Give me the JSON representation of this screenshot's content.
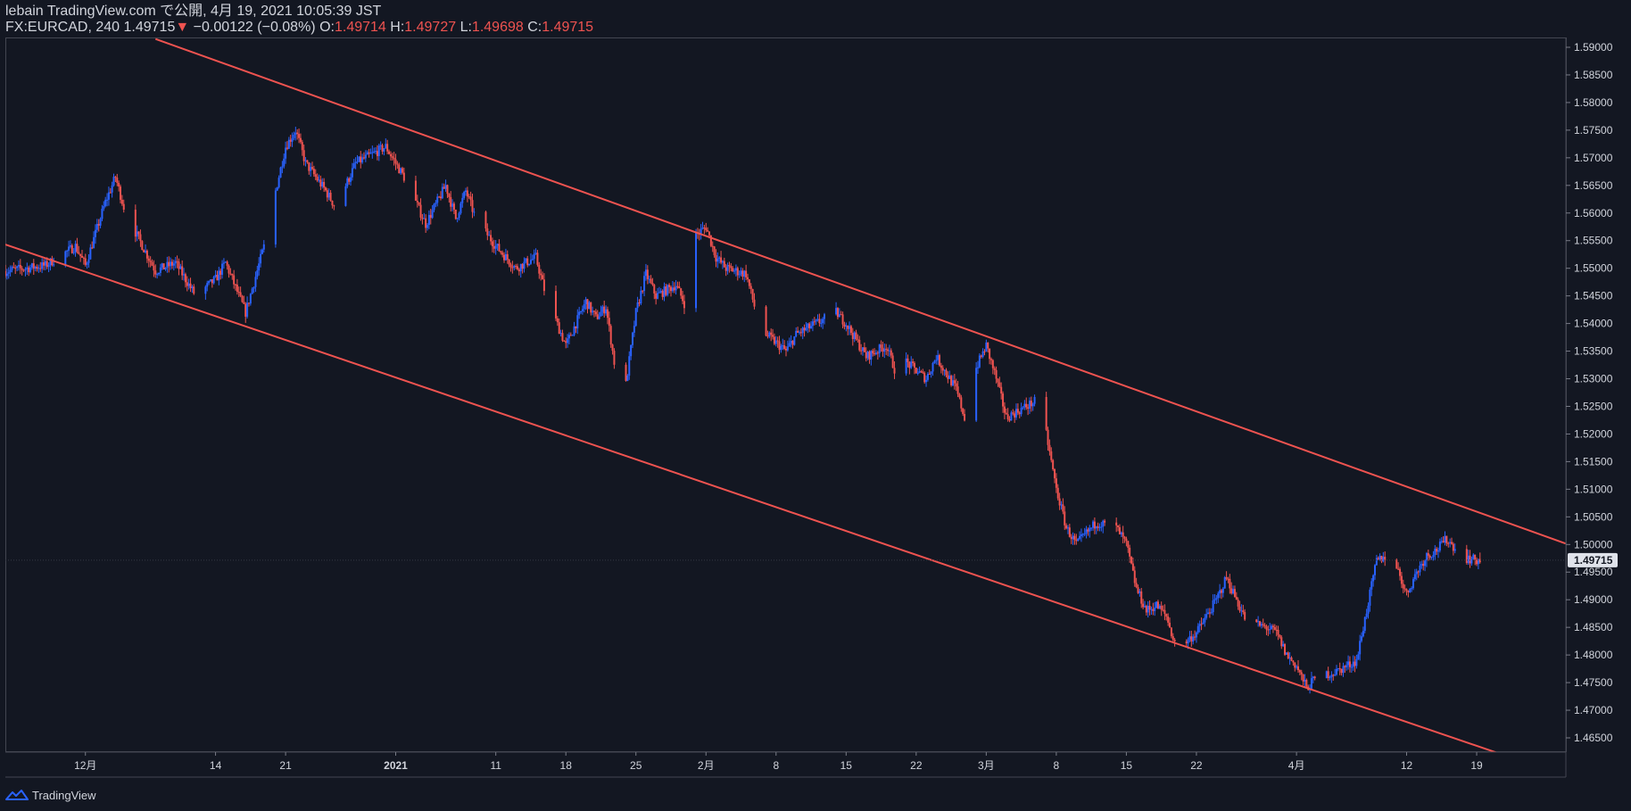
{
  "header": {
    "line1": "lebain TradingView.com で公開, 4月 19, 2021 10:05:39 JST",
    "symbol": "FX:EURCAD, 240",
    "last": "1.49715",
    "change_arrow": "▼",
    "change": "−0.00122 (−0.08%)",
    "o_label": "O:",
    "o_value": "1.49714",
    "h_label": "H:",
    "h_value": "1.49727",
    "l_label": "L:",
    "l_value": "1.49698",
    "c_label": "C:",
    "c_value": "1.49715"
  },
  "footer": {
    "brand": "TradingView",
    "icon": "tradingview-logo-icon"
  },
  "colors": {
    "background": "#131722",
    "up": "#2962ff",
    "down": "#ef5350",
    "trendline": "#ef5350",
    "axis_text": "#d1d4dc",
    "price_tag_bg": "#e0e3eb"
  },
  "chart_data": {
    "type": "candlestick",
    "symbol": "FX:EURCAD",
    "timeframe": "240",
    "y_ticks": [
      "1.59000",
      "1.58500",
      "1.58000",
      "1.57500",
      "1.57000",
      "1.56500",
      "1.56000",
      "1.55500",
      "1.55000",
      "1.54500",
      "1.54000",
      "1.53500",
      "1.53000",
      "1.52500",
      "1.52000",
      "1.51500",
      "1.51000",
      "1.50500",
      "1.50000",
      "1.49500",
      "1.49000",
      "1.48500",
      "1.48000",
      "1.47500",
      "1.47000",
      "1.46500"
    ],
    "ylim": [
      1.461,
      1.5915
    ],
    "x_start": "2020-11-23",
    "x_end": "2021-04-28",
    "x_ticks": [
      {
        "label": "12月",
        "date": "2020-12-01"
      },
      {
        "label": "14",
        "date": "2020-12-14"
      },
      {
        "label": "21",
        "date": "2020-12-21"
      },
      {
        "label": "2021",
        "date": "2021-01-01"
      },
      {
        "label": "11",
        "date": "2021-01-11"
      },
      {
        "label": "18",
        "date": "2021-01-18"
      },
      {
        "label": "25",
        "date": "2021-01-25"
      },
      {
        "label": "2月",
        "date": "2021-02-01"
      },
      {
        "label": "8",
        "date": "2021-02-08"
      },
      {
        "label": "15",
        "date": "2021-02-15"
      },
      {
        "label": "22",
        "date": "2021-02-22"
      },
      {
        "label": "3月",
        "date": "2021-03-01"
      },
      {
        "label": "8",
        "date": "2021-03-08"
      },
      {
        "label": "15",
        "date": "2021-03-15"
      },
      {
        "label": "22",
        "date": "2021-03-22"
      },
      {
        "label": "4月",
        "date": "2021-04-01"
      },
      {
        "label": "12",
        "date": "2021-04-12"
      },
      {
        "label": "19",
        "date": "2021-04-19"
      }
    ],
    "last_price": "1.49715",
    "close_path": [
      [
        "2020-11-23",
        1.5495
      ],
      [
        "2020-11-27",
        1.5505
      ],
      [
        "2020-11-30",
        1.554
      ],
      [
        "2020-12-01",
        1.5505
      ],
      [
        "2020-12-03",
        1.562
      ],
      [
        "2020-12-04",
        1.5665
      ],
      [
        "2020-12-05",
        1.56
      ],
      [
        "2020-12-07",
        1.553
      ],
      [
        "2020-12-08",
        1.5495
      ],
      [
        "2020-12-10",
        1.551
      ],
      [
        "2020-12-11",
        1.548
      ],
      [
        "2020-12-12",
        1.545
      ],
      [
        "2020-12-14",
        1.548
      ],
      [
        "2020-12-15",
        1.551
      ],
      [
        "2020-12-17",
        1.542
      ],
      [
        "2020-12-19",
        1.555
      ],
      [
        "2020-12-20",
        1.564
      ],
      [
        "2020-12-21",
        1.572
      ],
      [
        "2020-12-22",
        1.575
      ],
      [
        "2020-12-23",
        1.569
      ],
      [
        "2020-12-25",
        1.564
      ],
      [
        "2020-12-26",
        1.561
      ],
      [
        "2020-12-28",
        1.569
      ],
      [
        "2020-12-29",
        1.57
      ],
      [
        "2020-12-31",
        1.572
      ],
      [
        "2021-01-02",
        1.566
      ],
      [
        "2021-01-04",
        1.558
      ],
      [
        "2021-01-06",
        1.565
      ],
      [
        "2021-01-07",
        1.559
      ],
      [
        "2021-01-08",
        1.564
      ],
      [
        "2021-01-09",
        1.559
      ],
      [
        "2021-01-11",
        1.554
      ],
      [
        "2021-01-13",
        1.55
      ],
      [
        "2021-01-15",
        1.552
      ],
      [
        "2021-01-16",
        1.545
      ],
      [
        "2021-01-18",
        1.536
      ],
      [
        "2021-01-19",
        1.54
      ],
      [
        "2021-01-20",
        1.544
      ],
      [
        "2021-01-21",
        1.541
      ],
      [
        "2021-01-22",
        1.543
      ],
      [
        "2021-01-23",
        1.531
      ],
      [
        "2021-01-24",
        1.529
      ],
      [
        "2021-01-25",
        1.542
      ],
      [
        "2021-01-26",
        1.549
      ],
      [
        "2021-01-27",
        1.545
      ],
      [
        "2021-01-29",
        1.547
      ],
      [
        "2021-01-30",
        1.543
      ],
      [
        "2021-01-31",
        1.556
      ],
      [
        "2021-02-01",
        1.5575
      ],
      [
        "2021-02-02",
        1.552
      ],
      [
        "2021-02-03",
        1.55
      ],
      [
        "2021-02-05",
        1.549
      ],
      [
        "2021-02-06",
        1.542
      ],
      [
        "2021-02-07",
        1.538
      ],
      [
        "2021-02-09",
        1.535
      ],
      [
        "2021-02-10",
        1.538
      ],
      [
        "2021-02-12",
        1.54
      ],
      [
        "2021-02-14",
        1.542
      ],
      [
        "2021-02-15",
        1.54
      ],
      [
        "2021-02-16",
        1.537
      ],
      [
        "2021-02-17",
        1.534
      ],
      [
        "2021-02-19",
        1.536
      ],
      [
        "2021-02-20",
        1.531
      ],
      [
        "2021-02-21",
        1.533
      ],
      [
        "2021-02-23",
        1.53
      ],
      [
        "2021-02-24",
        1.534
      ],
      [
        "2021-02-26",
        1.528
      ],
      [
        "2021-02-27",
        1.522
      ],
      [
        "2021-02-28",
        1.532
      ],
      [
        "2021-03-01",
        1.536
      ],
      [
        "2021-03-02",
        1.53
      ],
      [
        "2021-03-03",
        1.523
      ],
      [
        "2021-03-05",
        1.525
      ],
      [
        "2021-03-06",
        1.526
      ],
      [
        "2021-03-07",
        1.52
      ],
      [
        "2021-03-08",
        1.51
      ],
      [
        "2021-03-09",
        1.503
      ],
      [
        "2021-03-10",
        1.5
      ],
      [
        "2021-03-12",
        1.504
      ],
      [
        "2021-03-14",
        1.503
      ],
      [
        "2021-03-15",
        1.5
      ],
      [
        "2021-03-16",
        1.492
      ],
      [
        "2021-03-17",
        1.488
      ],
      [
        "2021-03-18",
        1.489
      ],
      [
        "2021-03-19",
        1.487
      ],
      [
        "2021-03-20",
        1.481
      ],
      [
        "2021-03-22",
        1.484
      ],
      [
        "2021-03-23",
        1.487
      ],
      [
        "2021-03-24",
        1.49
      ],
      [
        "2021-03-25",
        1.494
      ],
      [
        "2021-03-26",
        1.49
      ],
      [
        "2021-03-27",
        1.486
      ],
      [
        "2021-03-29",
        1.485
      ],
      [
        "2021-03-30",
        1.484
      ],
      [
        "2021-03-31",
        1.48
      ],
      [
        "2021-04-01",
        1.478
      ],
      [
        "2021-04-02",
        1.474
      ],
      [
        "2021-04-03",
        1.476
      ],
      [
        "2021-04-05",
        1.477
      ],
      [
        "2021-04-07",
        1.479
      ],
      [
        "2021-04-08",
        1.488
      ],
      [
        "2021-04-09",
        1.497
      ],
      [
        "2021-04-10",
        1.498
      ],
      [
        "2021-04-11",
        1.496
      ],
      [
        "2021-04-12",
        1.491
      ],
      [
        "2021-04-13",
        1.495
      ],
      [
        "2021-04-14",
        1.498
      ],
      [
        "2021-04-15",
        1.499
      ],
      [
        "2021-04-16",
        1.501
      ],
      [
        "2021-04-17",
        1.499
      ],
      [
        "2021-04-18",
        1.4975
      ],
      [
        "2021-04-19",
        1.49715
      ]
    ],
    "trendlines": [
      {
        "name": "upper-channel-line",
        "points": [
          [
            "2020-12-08",
            1.5915
          ],
          [
            "2021-04-28",
            1.5001
          ]
        ]
      },
      {
        "name": "lower-channel-line",
        "points": [
          [
            "2020-11-23",
            1.5543
          ],
          [
            "2021-04-28",
            1.458
          ]
        ]
      }
    ]
  }
}
